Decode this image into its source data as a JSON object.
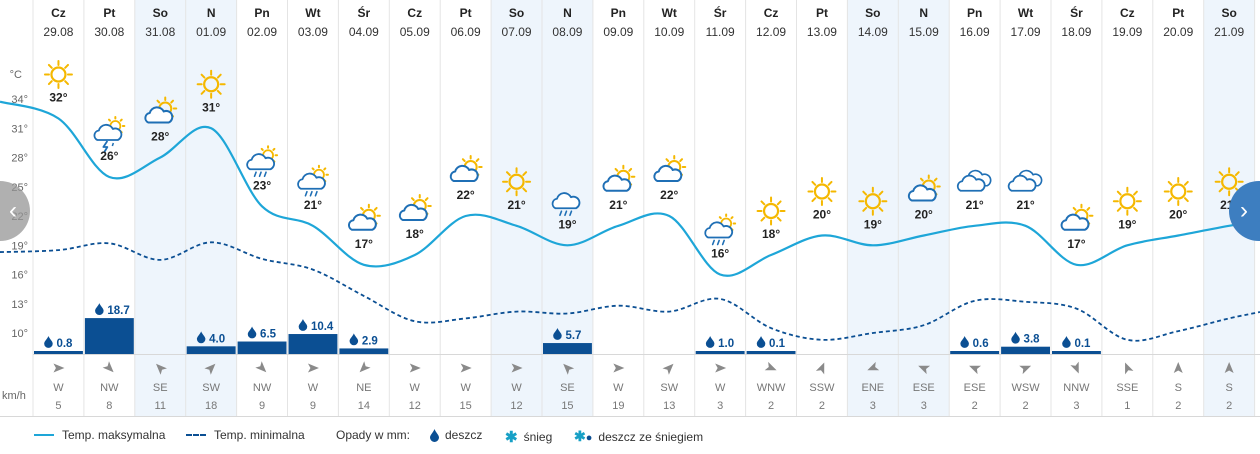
{
  "chart_data": {
    "type": "line",
    "days": [
      {
        "day": "Cz",
        "date": "29.08",
        "tmax": 32,
        "tmin": 18.5,
        "precip": 0.8,
        "wind_dir": "W",
        "wind_speed": 5,
        "icon": "sun-icon",
        "weekend": false
      },
      {
        "day": "Pt",
        "date": "30.08",
        "tmax": 26,
        "tmin": 19.2,
        "precip": 18.7,
        "wind_dir": "NW",
        "wind_speed": 8,
        "icon": "thunderstorm-icon",
        "weekend": false
      },
      {
        "day": "So",
        "date": "31.08",
        "tmax": 28,
        "tmin": 17.5,
        "precip": null,
        "wind_dir": "SE",
        "wind_speed": 11,
        "icon": "partly-cloudy-icon",
        "weekend": true
      },
      {
        "day": "N",
        "date": "01.09",
        "tmax": 31,
        "tmin": 19.3,
        "precip": 4.0,
        "wind_dir": "SW",
        "wind_speed": 18,
        "icon": "sun-icon",
        "weekend": true
      },
      {
        "day": "Pn",
        "date": "02.09",
        "tmax": 23,
        "tmin": 17.6,
        "precip": 6.5,
        "wind_dir": "NW",
        "wind_speed": 9,
        "icon": "sun-rain-cloud-icon",
        "weekend": false
      },
      {
        "day": "Wt",
        "date": "03.09",
        "tmax": 21,
        "tmin": 16.5,
        "precip": 10.4,
        "wind_dir": "W",
        "wind_speed": 9,
        "icon": "sun-rain-cloud-icon",
        "weekend": false
      },
      {
        "day": "Śr",
        "date": "04.09",
        "tmax": 17,
        "tmin": 13.8,
        "precip": 2.9,
        "wind_dir": "NE",
        "wind_speed": 14,
        "icon": "partly-cloudy-icon",
        "weekend": false
      },
      {
        "day": "Cz",
        "date": "05.09",
        "tmax": 18,
        "tmin": 11.2,
        "precip": null,
        "wind_dir": "W",
        "wind_speed": 12,
        "icon": "partly-cloudy-icon",
        "weekend": false
      },
      {
        "day": "Pt",
        "date": "06.09",
        "tmax": 22,
        "tmin": 11.5,
        "precip": null,
        "wind_dir": "W",
        "wind_speed": 15,
        "icon": "partly-cloudy-icon",
        "weekend": false
      },
      {
        "day": "So",
        "date": "07.09",
        "tmax": 21,
        "tmin": 12.2,
        "precip": null,
        "wind_dir": "W",
        "wind_speed": 12,
        "icon": "sun-icon",
        "weekend": true
      },
      {
        "day": "N",
        "date": "08.09",
        "tmax": 19,
        "tmin": 12.0,
        "precip": 5.7,
        "wind_dir": "SE",
        "wind_speed": 15,
        "icon": "rain-cloud-icon",
        "weekend": true
      },
      {
        "day": "Pn",
        "date": "09.09",
        "tmax": 21,
        "tmin": 12.8,
        "precip": null,
        "wind_dir": "W",
        "wind_speed": 19,
        "icon": "partly-cloudy-icon",
        "weekend": false
      },
      {
        "day": "Wt",
        "date": "10.09",
        "tmax": 22,
        "tmin": 12.2,
        "precip": null,
        "wind_dir": "SW",
        "wind_speed": 13,
        "icon": "partly-cloudy-icon",
        "weekend": false
      },
      {
        "day": "Śr",
        "date": "11.09",
        "tmax": 16,
        "tmin": 13.5,
        "precip": 1.0,
        "wind_dir": "W",
        "wind_speed": 3,
        "icon": "sun-rain-cloud-icon",
        "weekend": false
      },
      {
        "day": "Cz",
        "date": "12.09",
        "tmax": 18,
        "tmin": 10.5,
        "precip": 0.1,
        "wind_dir": "WNW",
        "wind_speed": 2,
        "icon": "sun-icon",
        "weekend": false
      },
      {
        "day": "Pt",
        "date": "13.09",
        "tmax": 20,
        "tmin": 9.3,
        "precip": null,
        "wind_dir": "SSW",
        "wind_speed": 2,
        "icon": "sun-icon",
        "weekend": false
      },
      {
        "day": "So",
        "date": "14.09",
        "tmax": 19,
        "tmin": 10.0,
        "precip": null,
        "wind_dir": "ENE",
        "wind_speed": 3,
        "icon": "sun-icon",
        "weekend": true
      },
      {
        "day": "N",
        "date": "15.09",
        "tmax": 20,
        "tmin": 10.8,
        "precip": null,
        "wind_dir": "ESE",
        "wind_speed": 3,
        "icon": "partly-cloudy-icon",
        "weekend": true
      },
      {
        "day": "Pn",
        "date": "16.09",
        "tmax": 21,
        "tmin": 13.3,
        "precip": 0.6,
        "wind_dir": "ESE",
        "wind_speed": 2,
        "icon": "cloudy-icon",
        "weekend": false
      },
      {
        "day": "Wt",
        "date": "17.09",
        "tmax": 21,
        "tmin": 13.2,
        "precip": 3.8,
        "wind_dir": "WSW",
        "wind_speed": 2,
        "icon": "cloudy-icon",
        "weekend": false
      },
      {
        "day": "Śr",
        "date": "18.09",
        "tmax": 17,
        "tmin": 12.5,
        "precip": 0.1,
        "wind_dir": "NNW",
        "wind_speed": 3,
        "icon": "partly-cloudy-icon",
        "weekend": false
      },
      {
        "day": "Cz",
        "date": "19.09",
        "tmax": 19,
        "tmin": 9.3,
        "precip": null,
        "wind_dir": "SSE",
        "wind_speed": 1,
        "icon": "sun-icon",
        "weekend": false
      },
      {
        "day": "Pt",
        "date": "20.09",
        "tmax": 20,
        "tmin": 10.2,
        "precip": null,
        "wind_dir": "S",
        "wind_speed": 2,
        "icon": "sun-icon",
        "weekend": false
      },
      {
        "day": "So",
        "date": "21.09",
        "tmax": 21,
        "tmin": 11.5,
        "precip": null,
        "wind_dir": "S",
        "wind_speed": 2,
        "icon": "sun-icon",
        "weekend": true
      }
    ],
    "y_unit": "°C",
    "y_ticks": [
      10,
      13,
      16,
      19,
      22,
      25,
      28,
      31,
      34
    ],
    "ylim": [
      7.5,
      36.5
    ],
    "wind_unit": "km/h",
    "series": [
      {
        "name": "Temp. maksymalna",
        "key": "tmax",
        "color": "#1ea6d8"
      },
      {
        "name": "Temp. minimalna",
        "key": "tmin",
        "color": "#0b4f93"
      }
    ]
  },
  "legend": {
    "max_label": "Temp. maksymalna",
    "min_label": "Temp. minimalna",
    "precip_title": "Opady w mm:",
    "rain_label": "deszcz",
    "snow_label": "śnieg",
    "sleet_label": "deszcz ze śniegiem"
  },
  "colors": {
    "tmax": "#1ea6d8",
    "tmin": "#0b4f93",
    "precip_bar": "#0b4f93",
    "weekend_bg": "#eef5fc",
    "sun": "#f5b800",
    "cloud": "#1f6fb5"
  },
  "nav": {
    "prev_icon": "chevron-left-icon",
    "next_icon": "chevron-right-icon"
  }
}
